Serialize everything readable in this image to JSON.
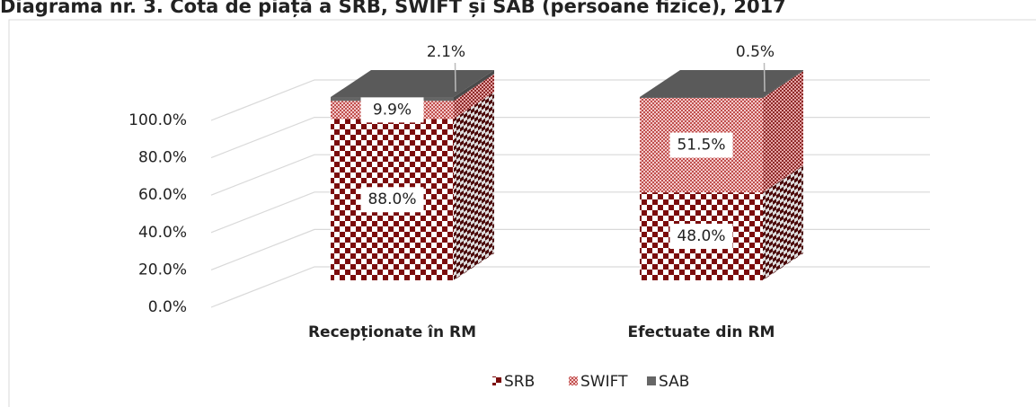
{
  "chart_data": {
    "type": "bar3d_stacked",
    "title": "Diagrama nr. 3. Cota de piață a SRB, SWIFT și SAB (persoane fizice), 2017",
    "categories": [
      "Recepționate în RM",
      "Efectuate din RM"
    ],
    "series": [
      {
        "name": "SRB",
        "color": "#7b0c0c",
        "values": [
          88.0,
          48.0
        ],
        "value_labels": [
          "88.0%",
          "48.0%"
        ]
      },
      {
        "name": "SWIFT",
        "color": "#d9646a",
        "values": [
          9.9,
          51.5
        ],
        "value_labels": [
          "9.9%",
          "51.5%"
        ]
      },
      {
        "name": "SAB",
        "color": "#5f5f5f",
        "values": [
          2.1,
          0.5
        ],
        "value_labels": [
          "2.1%",
          "0.5%"
        ]
      }
    ],
    "ylim": [
      0,
      100
    ],
    "yticks": [
      {
        "value": 0,
        "label": "0.0%"
      },
      {
        "value": 20,
        "label": "20.0%"
      },
      {
        "value": 40,
        "label": "40.0%"
      },
      {
        "value": 60,
        "label": "60.0%"
      },
      {
        "value": 80,
        "label": "80.0%"
      },
      {
        "value": 100,
        "label": "100.0%"
      }
    ],
    "grid": true,
    "legend": "bottom"
  }
}
